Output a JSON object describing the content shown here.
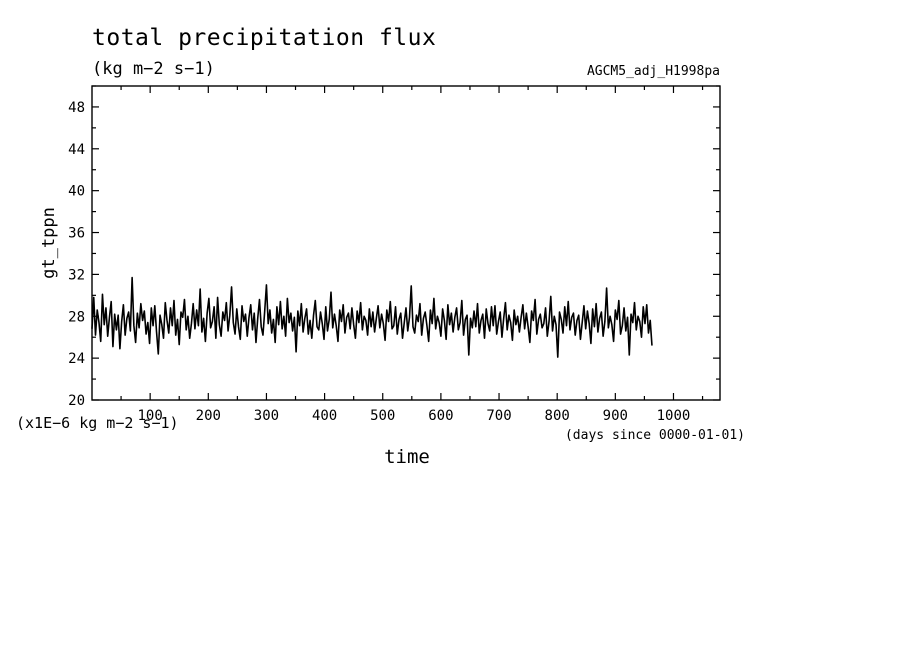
{
  "chart_data": {
    "type": "line",
    "title": "total precipitation flux",
    "units": "(kg m−2 s−1)",
    "experiment": "AGCM5_adj_H1998pa",
    "ylabel": "gt_tppn",
    "xlabel": "time",
    "y_scale_note": "(x1E−6 kg m−2 s−1)",
    "x_units": "(days since 0000-01-01)",
    "xlim": [
      0,
      1080
    ],
    "ylim": [
      20,
      50
    ],
    "x_ticks": [
      100,
      200,
      300,
      400,
      500,
      600,
      700,
      800,
      900,
      1000
    ],
    "y_ticks": [
      20,
      24,
      28,
      32,
      36,
      40,
      44,
      48
    ],
    "grid": false,
    "series": [
      {
        "color": "#000000",
        "start_day": 0,
        "step_days": 3,
        "values": [
          26.8,
          29.8,
          26.2,
          28.6,
          27.4,
          25.6,
          30.1,
          27.2,
          28.8,
          26.1,
          27.9,
          29.4,
          25.1,
          28.2,
          26.7,
          28.1,
          24.9,
          27.5,
          29.1,
          26.2,
          27.8,
          28.4,
          26.6,
          31.7,
          27.1,
          25.5,
          28.3,
          26.9,
          29.2,
          27.6,
          28.5,
          26.3,
          27.4,
          25.4,
          28.8,
          27.1,
          29.0,
          26.5,
          24.4,
          28.1,
          27.2,
          25.9,
          29.3,
          27.6,
          26.4,
          28.8,
          27.1,
          29.5,
          26.2,
          27.7,
          25.3,
          28.4,
          27.9,
          29.6,
          26.7,
          28.0,
          25.9,
          27.3,
          29.2,
          26.8,
          28.6,
          27.1,
          30.6,
          26.5,
          27.8,
          25.6,
          28.3,
          29.7,
          26.9,
          27.5,
          28.9,
          25.9,
          29.8,
          27.2,
          26.1,
          28.4,
          27.6,
          29.3,
          26.6,
          28.1,
          30.8,
          27.4,
          26.3,
          28.7,
          27.0,
          25.8,
          29.0,
          27.5,
          28.2,
          26.1,
          27.9,
          29.1,
          26.7,
          28.3,
          25.5,
          27.8,
          29.6,
          27.0,
          26.2,
          28.5,
          31.0,
          27.3,
          28.6,
          26.4,
          27.7,
          25.5,
          28.9,
          27.2,
          29.4,
          26.8,
          28.0,
          26.1,
          29.7,
          27.4,
          28.3,
          26.6,
          27.9,
          24.6,
          28.5,
          27.1,
          29.2,
          26.5,
          27.8,
          28.7,
          26.3,
          27.6,
          25.9,
          28.1,
          29.5,
          27.0,
          26.7,
          28.4,
          27.3,
          25.8,
          28.9,
          26.6,
          27.7,
          30.3,
          26.9,
          28.2,
          27.1,
          25.6,
          28.6,
          27.5,
          29.1,
          26.4,
          27.9,
          28.3,
          26.8,
          28.8,
          27.2,
          25.9,
          28.5,
          27.4,
          29.3,
          26.7,
          28.0,
          27.6,
          26.2,
          28.7,
          27.0,
          28.4,
          26.5,
          27.8,
          29.0,
          26.9,
          28.2,
          27.3,
          25.7,
          28.6,
          27.5,
          29.4,
          26.8,
          27.1,
          28.9,
          26.3,
          27.7,
          28.3,
          25.9,
          27.4,
          28.8,
          26.6,
          27.9,
          30.9,
          27.0,
          26.4,
          28.1,
          27.5,
          29.2,
          26.2,
          27.8,
          28.4,
          27.1,
          25.6,
          28.6,
          27.3,
          29.7,
          26.8,
          28.0,
          27.4,
          26.1,
          28.7,
          27.6,
          25.8,
          29.1,
          27.2,
          28.3,
          26.5,
          27.9,
          28.8,
          26.7,
          27.4,
          29.5,
          26.2,
          27.7,
          28.1,
          24.3,
          27.8,
          26.9,
          28.5,
          27.0,
          29.2,
          26.4,
          27.6,
          28.2,
          25.9,
          28.7,
          27.3,
          26.6,
          28.9,
          27.1,
          29.0,
          26.3,
          27.5,
          28.4,
          26.0,
          27.8,
          29.3,
          26.7,
          28.1,
          27.4,
          25.7,
          28.6,
          27.2,
          28.0,
          26.5,
          27.9,
          29.1,
          26.8,
          28.3,
          27.0,
          25.5,
          28.5,
          27.6,
          29.6,
          26.3,
          27.7,
          28.2,
          26.9,
          27.3,
          28.8,
          26.1,
          27.5,
          29.9,
          26.6,
          28.0,
          27.2,
          24.1,
          28.4,
          27.7,
          26.4,
          28.9,
          27.1,
          29.4,
          26.7,
          27.9,
          28.3,
          26.2,
          27.6,
          28.1,
          25.8,
          27.4,
          29.0,
          26.8,
          28.5,
          27.3,
          25.4,
          28.7,
          27.0,
          29.2,
          26.5,
          27.8,
          28.4,
          26.1,
          27.5,
          30.7,
          26.9,
          28.0,
          27.2,
          25.6,
          28.6,
          27.7,
          29.5,
          26.3,
          27.1,
          28.8,
          26.6,
          27.9,
          24.3,
          28.2,
          27.4,
          29.3,
          26.7,
          28.0,
          27.5,
          26.0,
          28.9,
          27.3,
          29.1,
          26.4,
          27.6,
          25.2
        ]
      }
    ]
  }
}
